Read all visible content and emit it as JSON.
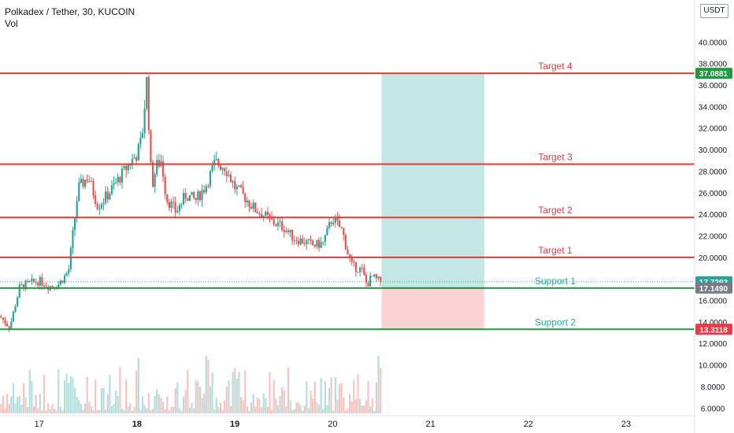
{
  "header": {
    "title": "Polkadex / Tether, 30, KUCOIN",
    "volume_label": "Vol",
    "currency": "USDT"
  },
  "chart_data": {
    "type": "candlestick",
    "symbol": "Polkadex / Tether",
    "interval": "30",
    "exchange": "KUCOIN",
    "x_ticks": [
      "17",
      "18",
      "19",
      "20",
      "21",
      "22",
      "23"
    ],
    "y_ticks": [
      "6.0000",
      "8.0000",
      "10.0000",
      "12.0000",
      "14.0000",
      "16.0000",
      "18.0000",
      "20.0000",
      "22.0000",
      "24.0000",
      "26.0000",
      "28.0000",
      "30.0000",
      "32.0000",
      "34.0000",
      "36.0000",
      "38.0000",
      "40.0000"
    ],
    "ylim": [
      5.8,
      42.0
    ],
    "price_path": [
      [
        16.6,
        14.5
      ],
      [
        16.7,
        13.5
      ],
      [
        16.8,
        17.2
      ],
      [
        16.9,
        17.6
      ],
      [
        17.0,
        17.8
      ],
      [
        17.1,
        17.3
      ],
      [
        17.2,
        17.5
      ],
      [
        17.3,
        18.7
      ],
      [
        17.4,
        26.4
      ],
      [
        17.5,
        27.5
      ],
      [
        17.6,
        24.8
      ],
      [
        17.7,
        25.8
      ],
      [
        17.8,
        27.1
      ],
      [
        17.9,
        28.4
      ],
      [
        18.0,
        29.6
      ],
      [
        18.05,
        31.0
      ],
      [
        18.1,
        36.5
      ],
      [
        18.15,
        26.5
      ],
      [
        18.2,
        28.5
      ],
      [
        18.25,
        29.0
      ],
      [
        18.3,
        25.5
      ],
      [
        18.4,
        24.2
      ],
      [
        18.5,
        25.8
      ],
      [
        18.6,
        25.3
      ],
      [
        18.7,
        26.6
      ],
      [
        18.8,
        28.8
      ],
      [
        18.9,
        28.4
      ],
      [
        19.0,
        26.5
      ],
      [
        19.1,
        25.6
      ],
      [
        19.2,
        24.5
      ],
      [
        19.3,
        23.9
      ],
      [
        19.4,
        23.2
      ],
      [
        19.5,
        22.8
      ],
      [
        19.6,
        21.8
      ],
      [
        19.7,
        21.5
      ],
      [
        19.8,
        21.1
      ],
      [
        19.9,
        21.3
      ],
      [
        20.0,
        23.7
      ],
      [
        20.1,
        22.4
      ],
      [
        20.15,
        20.5
      ],
      [
        20.2,
        19.2
      ],
      [
        20.3,
        18.8
      ],
      [
        20.35,
        17.4
      ],
      [
        20.4,
        18.2
      ],
      [
        20.45,
        17.9
      ],
      [
        20.5,
        17.73
      ]
    ],
    "last_price": {
      "value": 17.7293,
      "label": "17.7293"
    },
    "levels": [
      {
        "name": "Target 4",
        "value": 37.0881,
        "label": "37.0881",
        "color": "#f23645"
      },
      {
        "name": "Target 3",
        "value": 28.65,
        "label": "",
        "color": "#f23645"
      },
      {
        "name": "Target 2",
        "value": 23.7,
        "label": "",
        "color": "#f23645"
      },
      {
        "name": "Target 1",
        "value": 20.0,
        "label": "",
        "color": "#f23645"
      },
      {
        "name": "Support 1",
        "value": 17.149,
        "label": "17.1490",
        "color": "#22ab94"
      },
      {
        "name": "Support 2",
        "value": 13.3118,
        "label": "13.3118",
        "color": "#22ab94"
      }
    ],
    "position": {
      "start_x": 20.5,
      "end_x": 21.55,
      "entry": 17.149,
      "target": 37.0881,
      "stop": 13.3118,
      "target_label": "37.0881",
      "entry_label": "17.1490",
      "stop_label": "13.3118",
      "profit_color": "#b2dfdb",
      "loss_color": "#fccbcd"
    },
    "colors": {
      "up": "#26a69a",
      "down": "#ef5350",
      "axis_text": "#131722"
    }
  }
}
